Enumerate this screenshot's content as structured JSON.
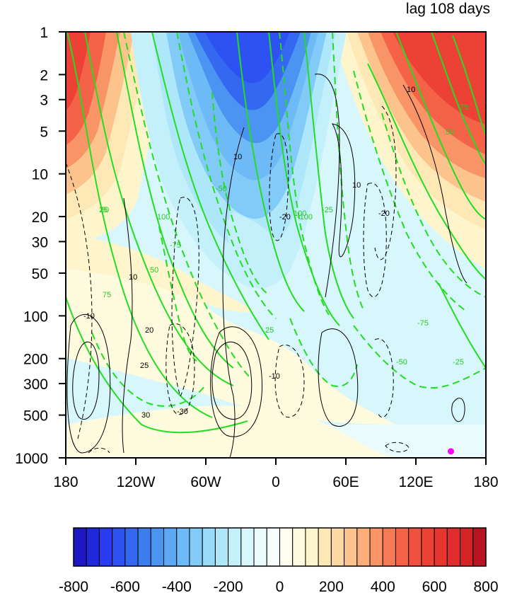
{
  "chart_data": {
    "type": "heatmap",
    "title": "lag 108 days",
    "xlabel": "",
    "ylabel": "",
    "x_axis": {
      "range": [
        -180,
        180
      ],
      "ticks": [
        -180,
        -120,
        -60,
        0,
        60,
        120,
        180
      ],
      "tick_labels": [
        "180",
        "120W",
        "60W",
        "0",
        "60E",
        "120E",
        "180"
      ]
    },
    "y_axis": {
      "scale": "log",
      "reversed": true,
      "range": [
        1,
        1000
      ],
      "ticks": [
        1,
        2,
        3,
        5,
        10,
        20,
        30,
        50,
        100,
        200,
        300,
        500,
        1000
      ],
      "tick_labels": [
        "1",
        "2",
        "3",
        "5",
        "10",
        "20",
        "30",
        "50",
        "100",
        "200",
        "300",
        "500",
        "1000"
      ]
    },
    "fill": {
      "levels": [
        -800,
        -750,
        -700,
        -650,
        -600,
        -550,
        -500,
        -450,
        -400,
        -350,
        -300,
        -250,
        -200,
        -150,
        -100,
        -50,
        0,
        50,
        100,
        150,
        200,
        250,
        300,
        350,
        400,
        450,
        500,
        550,
        600,
        650,
        700,
        750,
        800
      ],
      "colorbar_labels": [
        "-800",
        "-600",
        "-400",
        "-200",
        "0",
        "200",
        "400",
        "600",
        "800"
      ],
      "colorbar_label_values": [
        -800,
        -600,
        -400,
        -200,
        0,
        200,
        400,
        600,
        800
      ],
      "colors": [
        "#1e17c4",
        "#2028dc",
        "#2a3cf0",
        "#2e52f2",
        "#3468f0",
        "#3c7ef0",
        "#4c94f2",
        "#5ca8f4",
        "#6ebaf6",
        "#82cbf8",
        "#98daf8",
        "#aee6fa",
        "#c4f0fb",
        "#d8f7fc",
        "#eafbfd",
        "#f6fefe",
        "#fffef0",
        "#fffbde",
        "#fff5cc",
        "#fee9b6",
        "#fdd8a0",
        "#fcc48c",
        "#fbae78",
        "#f99466",
        "#f77a56",
        "#f46248",
        "#f0503e",
        "#ec4236",
        "#e8362f",
        "#e02c2a",
        "#d42426",
        "#b81422"
      ]
    },
    "contour_labels_black": [
      "10",
      "20",
      "25",
      "30",
      "-10",
      "-20",
      "-30"
    ],
    "contour_labels_green": [
      "25",
      "50",
      "75",
      "100",
      "-25",
      "-50",
      "-75",
      "-100"
    ],
    "marker": {
      "lon": 150,
      "pressure": 900,
      "color": "#ff00ff"
    }
  }
}
